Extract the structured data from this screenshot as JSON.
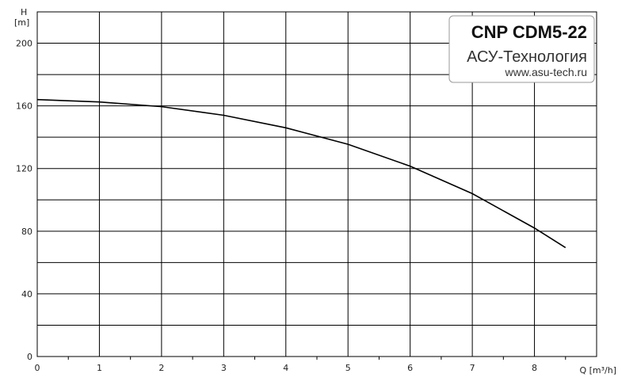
{
  "chart_data": {
    "type": "line",
    "y_label": "H",
    "y_unit": "[m]",
    "x_label": "Q [m³/h]",
    "x": [
      0,
      1,
      2,
      3,
      4,
      5,
      6,
      7,
      8,
      8.5
    ],
    "series": [
      {
        "name": "CNP CDM5-22",
        "color": "#000000",
        "values": [
          164,
          162.5,
          159.5,
          154,
          146,
          135.5,
          121.5,
          104,
          82,
          69.5
        ]
      }
    ],
    "xlim": [
      0,
      9
    ],
    "xticks": [
      0,
      1,
      2,
      3,
      4,
      5,
      6,
      7,
      8
    ],
    "ylim": [
      0,
      220
    ],
    "yticks": [
      0,
      40,
      80,
      120,
      160,
      200
    ],
    "grid": true,
    "badge": {
      "model": "CNP CDM5-22",
      "company": "АСУ-Технология",
      "site": "www.asu-tech.ru"
    }
  }
}
